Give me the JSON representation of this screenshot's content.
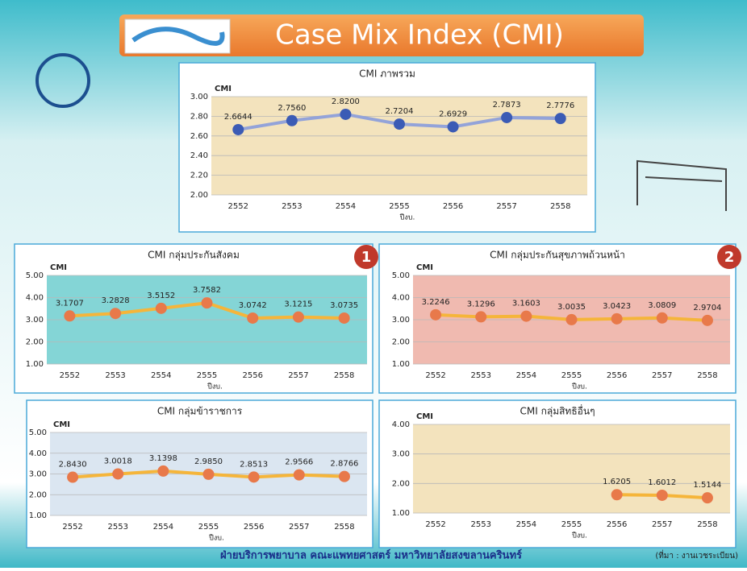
{
  "header": {
    "title": "Case Mix Index (CMI)"
  },
  "footer": {
    "text": "ฝ่ายบริการพยาบาล คณะแพทยศาสตร์ มหาวิทยาลัยสงขลานครินทร์",
    "source": "(ที่มา : งานเวชระเบียน)"
  },
  "chart_data": [
    {
      "type": "line",
      "title": "CMI ภาพรวม",
      "ylabel": "CMI",
      "xlabel": "ปีงบ.",
      "categories": [
        "2552",
        "2553",
        "2554",
        "2555",
        "2556",
        "2557",
        "2558"
      ],
      "values": [
        2.6644,
        2.756,
        2.82,
        2.7204,
        2.6929,
        2.7873,
        2.7776
      ],
      "value_labels": [
        "2.6644",
        "2.7560",
        "2.8200",
        "2.7204",
        "2.6929",
        "2.7873",
        "2.7776"
      ],
      "color": "#93a3d9",
      "marker_color": "#3b5bb5",
      "background": "#f3e3bd",
      "ylim": [
        2,
        3
      ],
      "yticks": [
        {
          "value": 2,
          "label": "2.00"
        },
        {
          "value": 2.2,
          "label": "2.20"
        },
        {
          "value": 2.4,
          "label": "2.40"
        },
        {
          "value": 2.6,
          "label": "2.60"
        },
        {
          "value": 2.8,
          "label": "2.80"
        },
        {
          "value": 3,
          "label": "3.00"
        }
      ],
      "grid": true
    },
    {
      "type": "line",
      "title": "CMI กลุ่มประกันสังคม",
      "ylabel": "CMI",
      "xlabel": "ปีงบ.",
      "badge": "1",
      "categories": [
        "2552",
        "2553",
        "2554",
        "2555",
        "2556",
        "2557",
        "2558"
      ],
      "values": [
        3.1707,
        3.2828,
        3.5152,
        3.7582,
        3.0742,
        3.1215,
        3.0735
      ],
      "value_labels": [
        "3.1707",
        "3.2828",
        "3.5152",
        "3.7582",
        "3.0742",
        "3.1215",
        "3.0735"
      ],
      "color": "#f5b53a",
      "marker_color": "#e8794a",
      "background": "#84d5d6",
      "ylim": [
        1,
        5
      ],
      "yticks": [
        {
          "value": 1,
          "label": "1.00"
        },
        {
          "value": 2,
          "label": "2.00"
        },
        {
          "value": 3,
          "label": "3.00"
        },
        {
          "value": 4,
          "label": "4.00"
        },
        {
          "value": 5,
          "label": "5.00"
        }
      ],
      "grid": true
    },
    {
      "type": "line",
      "title": "CMI กลุ่มประกันสุขภาพถ้วนหน้า",
      "ylabel": "CMI",
      "xlabel": "ปีงบ.",
      "badge": "2",
      "categories": [
        "2552",
        "2553",
        "2554",
        "2555",
        "2556",
        "2557",
        "2558"
      ],
      "values": [
        3.2246,
        3.1296,
        3.1603,
        3.0035,
        3.0423,
        3.0809,
        2.9704
      ],
      "value_labels": [
        "3.2246",
        "3.1296",
        "3.1603",
        "3.0035",
        "3.0423",
        "3.0809",
        "2.9704"
      ],
      "color": "#f5b53a",
      "marker_color": "#e8794a",
      "background": "#f0bab0",
      "ylim": [
        1,
        5
      ],
      "yticks": [
        {
          "value": 1,
          "label": "1.00"
        },
        {
          "value": 2,
          "label": "2.00"
        },
        {
          "value": 3,
          "label": "3.00"
        },
        {
          "value": 4,
          "label": "4.00"
        },
        {
          "value": 5,
          "label": "5.00"
        }
      ],
      "grid": true
    },
    {
      "type": "line",
      "title": "CMI กลุ่มข้าราชการ",
      "ylabel": "CMI",
      "xlabel": "ปีงบ.",
      "categories": [
        "2552",
        "2553",
        "2554",
        "2555",
        "2556",
        "2557",
        "2558"
      ],
      "values": [
        2.843,
        3.0018,
        3.1398,
        2.985,
        2.8513,
        2.9566,
        2.8766
      ],
      "value_labels": [
        "2.8430",
        "3.0018",
        "3.1398",
        "2.9850",
        "2.8513",
        "2.9566",
        "2.8766"
      ],
      "color": "#f5b53a",
      "marker_color": "#e8794a",
      "background": "#dbe6f1",
      "ylim": [
        1,
        5
      ],
      "yticks": [
        {
          "value": 1,
          "label": "1.00"
        },
        {
          "value": 2,
          "label": "2.00"
        },
        {
          "value": 3,
          "label": "3.00"
        },
        {
          "value": 4,
          "label": "4.00"
        },
        {
          "value": 5,
          "label": "5.00"
        }
      ],
      "grid": true
    },
    {
      "type": "line",
      "title": "CMI กลุ่มสิทธิอื่นๆ",
      "ylabel": "CMI",
      "xlabel": "ปีงบ.",
      "categories": [
        "2552",
        "2553",
        "2554",
        "2555",
        "2556",
        "2557",
        "2558"
      ],
      "values": [
        null,
        null,
        null,
        null,
        1.6205,
        1.6012,
        1.5144
      ],
      "value_labels": [
        null,
        null,
        null,
        null,
        "1.6205",
        "1.6012",
        "1.5144"
      ],
      "color": "#f5b53a",
      "marker_color": "#e8794a",
      "background": "#f3e3bd",
      "ylim": [
        1,
        4
      ],
      "yticks": [
        {
          "value": 1,
          "label": "1.00"
        },
        {
          "value": 2,
          "label": "2.00"
        },
        {
          "value": 3,
          "label": "3.00"
        },
        {
          "value": 4,
          "label": "4.00"
        }
      ],
      "grid": true
    }
  ]
}
